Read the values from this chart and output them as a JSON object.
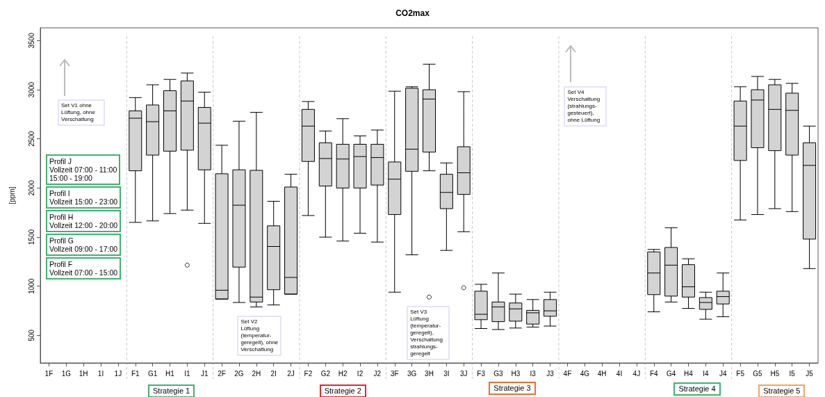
{
  "chart_data": {
    "type": "box",
    "title": "CO2max",
    "ylabel": "[ppm]",
    "categories": [
      "1F",
      "1G",
      "1H",
      "1I",
      "1J",
      "F1",
      "G1",
      "H1",
      "I1",
      "J1",
      "2F",
      "2G",
      "2H",
      "2I",
      "2J",
      "F2",
      "G2",
      "H2",
      "I2",
      "J2",
      "3F",
      "3G",
      "3H",
      "3I",
      "3J",
      "F3",
      "G3",
      "H3",
      "I3",
      "J3",
      "4F",
      "4G",
      "4H",
      "4I",
      "4J",
      "F4",
      "G4",
      "H4",
      "I4",
      "J4",
      "F5",
      "G5",
      "H5",
      "I5",
      "J5"
    ],
    "series": [
      {
        "color": "#d3d3d3",
        "boxes": [
          null,
          null,
          null,
          null,
          null,
          {
            "low": 1650,
            "q1": 2175,
            "median": 2710,
            "q3": 2785,
            "high": 2920
          },
          {
            "low": 1665,
            "q1": 2335,
            "median": 2675,
            "q3": 2845,
            "high": 3050
          },
          {
            "low": 1740,
            "q1": 2375,
            "median": 2785,
            "q3": 2990,
            "high": 3105
          },
          {
            "low": 1775,
            "q1": 2385,
            "median": 2885,
            "q3": 3090,
            "high": 3170,
            "outliers": [
              1215
            ]
          },
          {
            "low": 1640,
            "q1": 2185,
            "median": 2660,
            "q3": 2820,
            "high": 2975
          },
          {
            "low": 870,
            "q1": 870,
            "median": 960,
            "q3": 2145,
            "high": 2435
          },
          {
            "low": 835,
            "q1": 1195,
            "median": 1825,
            "q3": 2185,
            "high": 2680
          },
          {
            "low": 790,
            "q1": 840,
            "median": 890,
            "q3": 2180,
            "high": 2770
          },
          {
            "low": 810,
            "q1": 965,
            "median": 1405,
            "q3": 1615,
            "high": 1865
          },
          {
            "low": 920,
            "q1": 920,
            "median": 1090,
            "q3": 2010,
            "high": 2140
          },
          {
            "low": 1720,
            "q1": 2270,
            "median": 2630,
            "q3": 2800,
            "high": 2880
          },
          {
            "low": 1500,
            "q1": 2020,
            "median": 2300,
            "q3": 2460,
            "high": 2580
          },
          {
            "low": 1460,
            "q1": 2000,
            "median": 2295,
            "q3": 2445,
            "high": 2705
          },
          {
            "low": 1540,
            "q1": 2000,
            "median": 2320,
            "q3": 2445,
            "high": 2530
          },
          {
            "low": 1450,
            "q1": 2030,
            "median": 2310,
            "q3": 2445,
            "high": 2590
          },
          {
            "low": 940,
            "q1": 1730,
            "median": 2090,
            "q3": 2265,
            "high": 2985
          },
          {
            "low": 1320,
            "q1": 2170,
            "median": 2395,
            "q3": 3015,
            "high": 3030
          },
          {
            "low": 2175,
            "q1": 2365,
            "median": 2905,
            "q3": 3000,
            "high": 3260,
            "outliers": [
              890
            ]
          },
          {
            "low": 1365,
            "q1": 1790,
            "median": 1955,
            "q3": 2140,
            "high": 2255
          },
          {
            "low": 1555,
            "q1": 1935,
            "median": 2155,
            "q3": 2420,
            "high": 2980,
            "outliers": [
              985
            ]
          },
          {
            "low": 570,
            "q1": 660,
            "median": 715,
            "q3": 950,
            "high": 1020
          },
          {
            "low": 560,
            "q1": 640,
            "median": 790,
            "q3": 840,
            "high": 1135
          },
          {
            "low": 575,
            "q1": 645,
            "median": 770,
            "q3": 830,
            "high": 920
          },
          {
            "low": 585,
            "q1": 615,
            "median": 730,
            "q3": 755,
            "high": 865
          },
          {
            "low": 595,
            "q1": 695,
            "median": 750,
            "q3": 865,
            "high": 940
          },
          null,
          null,
          null,
          null,
          null,
          {
            "low": 740,
            "q1": 915,
            "median": 1135,
            "q3": 1350,
            "high": 1375
          },
          {
            "low": 840,
            "q1": 900,
            "median": 1215,
            "q3": 1395,
            "high": 1595
          },
          {
            "low": 775,
            "q1": 890,
            "median": 995,
            "q3": 1220,
            "high": 1280
          },
          {
            "low": 665,
            "q1": 765,
            "median": 835,
            "q3": 885,
            "high": 940
          },
          {
            "low": 690,
            "q1": 820,
            "median": 895,
            "q3": 950,
            "high": 1135
          },
          {
            "low": 1675,
            "q1": 2280,
            "median": 2630,
            "q3": 2885,
            "high": 3030
          },
          {
            "low": 1730,
            "q1": 2410,
            "median": 2895,
            "q3": 3000,
            "high": 3135
          },
          {
            "low": 1790,
            "q1": 2380,
            "median": 2800,
            "q3": 3050,
            "high": 3105
          },
          {
            "low": 1760,
            "q1": 2335,
            "median": 2790,
            "q3": 2965,
            "high": 3065
          },
          {
            "low": 1180,
            "q1": 1480,
            "median": 2230,
            "q3": 2460,
            "high": 2630
          }
        ]
      }
    ],
    "ylim": [
      220,
      3630
    ],
    "yticks": [
      500,
      1000,
      1500,
      2000,
      2500,
      3000,
      3500
    ],
    "grid": false,
    "annotations": [
      "Profil J\nVollzeit 07:00 - 11:00\n15:00 - 19:00",
      "Profil I\nVollzeit 15:00 - 23:00",
      "Profil H\nVollzeit 12:00 - 20:00",
      "Profil G\nVollzeit 09:00 - 17:00",
      "Profil F\nVollzeit 07:00 - 15:00",
      "Set V1 ohne\nLüftung, ohne\nVerschattung",
      "Set V2\nLüftung\n(temperatur-\ngeregelt), ohne\nVerschattung",
      "Set V3 Lüftung\n(temperatur-\ngeregelt),\nVerschattung\nstrahlungs-\ngeregelt",
      "Set V4\nVerschattung\n(strahlungs-\ngesteuert),\nohne Lüftung",
      "Strategie 1",
      "Strategie 2",
      "Strategie 3",
      "Strategie 4",
      "Strategie 5"
    ]
  }
}
